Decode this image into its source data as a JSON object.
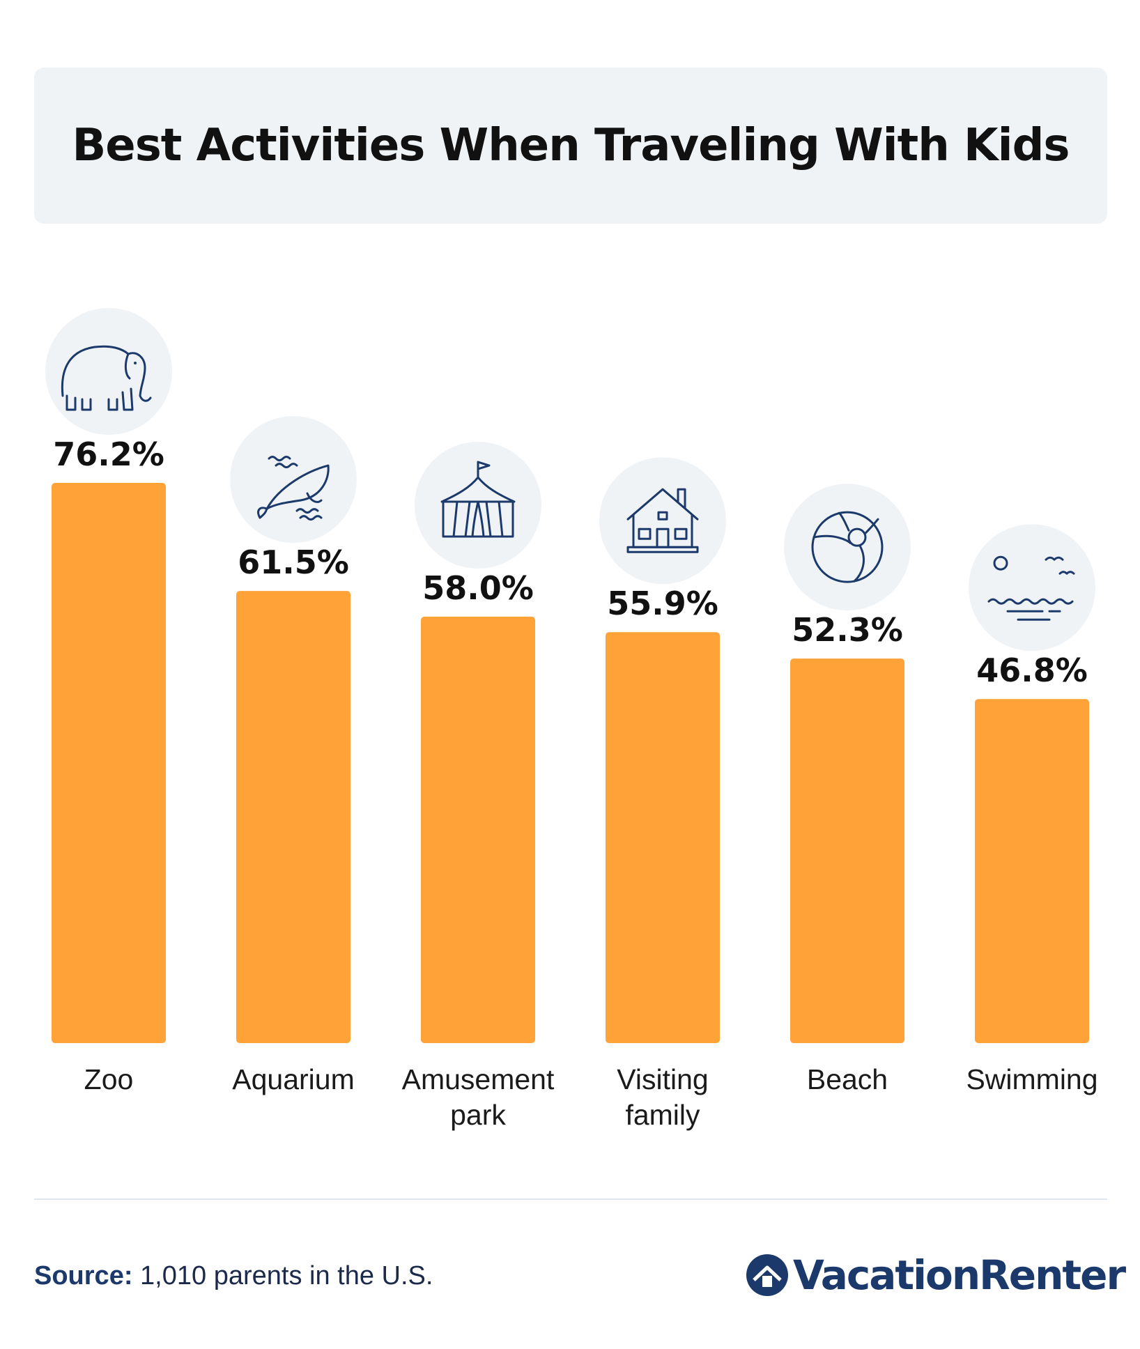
{
  "chart_data": {
    "type": "bar",
    "title": "Best Activities When Traveling With Kids",
    "categories": [
      "Zoo",
      "Aquarium",
      "Amusement park",
      "Visiting family",
      "Beach",
      "Swimming"
    ],
    "category_lines": [
      [
        "Zoo"
      ],
      [
        "Aquarium"
      ],
      [
        "Amusement",
        "park"
      ],
      [
        "Visiting",
        "family"
      ],
      [
        "Beach"
      ],
      [
        "Swimming"
      ]
    ],
    "values": [
      76.2,
      61.5,
      58.0,
      55.9,
      52.3,
      46.8
    ],
    "value_labels": [
      "76.2%",
      "61.5%",
      "58.0%",
      "55.9%",
      "52.3%",
      "46.8%"
    ],
    "icons": [
      "elephant-icon",
      "whale-icon",
      "circus-tent-icon",
      "house-icon",
      "beach-ball-icon",
      "sea-icon"
    ],
    "ylim": [
      0,
      76.2
    ],
    "grid": false,
    "legend": "none",
    "bar_color": "#ffa238",
    "icon_bg_color": "#f0f3f6",
    "icon_stroke_color": "#1b3a6b"
  },
  "footer": {
    "source_label": "Source:",
    "source_text": " 1,010 parents in the U.S.",
    "logo_text": "VacationRenter"
  }
}
